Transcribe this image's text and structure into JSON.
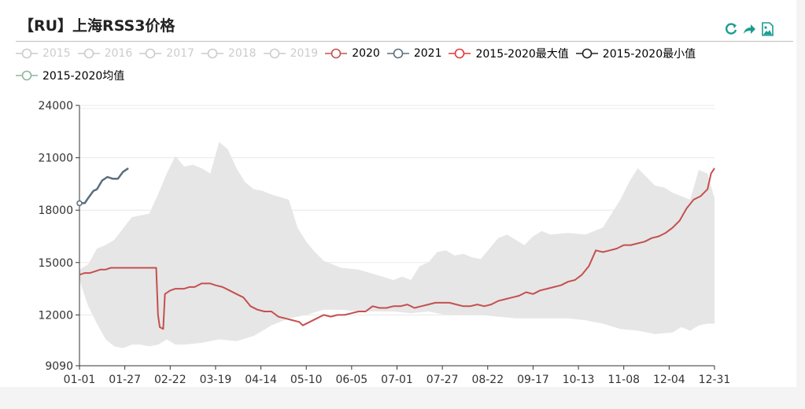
{
  "title": "【RU】上海RSS3价格",
  "toolbox": {
    "icons": [
      "refresh-icon",
      "share-icon",
      "save-image-icon"
    ],
    "color": "#1a9d8f"
  },
  "chart_data": {
    "type": "line",
    "title": "【RU】上海RSS3价格",
    "xlabel": "",
    "ylabel": "",
    "x_ticks": [
      "01-01",
      "01-27",
      "02-22",
      "03-19",
      "04-14",
      "05-10",
      "06-05",
      "07-01",
      "07-27",
      "08-22",
      "09-17",
      "10-13",
      "11-08",
      "12-04",
      "12-31"
    ],
    "y_ticks": [
      9090,
      12000,
      15000,
      18000,
      21000,
      24000
    ],
    "ylim": [
      9090,
      24000
    ],
    "x_domain": [
      0,
      364
    ],
    "grid": true,
    "legend_position": "top",
    "range_band": {
      "name": "2015-2019",
      "color": "#e6e6e6",
      "upper": [
        [
          0,
          14600
        ],
        [
          5,
          14900
        ],
        [
          10,
          15800
        ],
        [
          15,
          16000
        ],
        [
          20,
          16300
        ],
        [
          30,
          17600
        ],
        [
          40,
          17800
        ],
        [
          45,
          18900
        ],
        [
          50,
          20100
        ],
        [
          55,
          21100
        ],
        [
          60,
          20500
        ],
        [
          65,
          20600
        ],
        [
          70,
          20400
        ],
        [
          75,
          20100
        ],
        [
          80,
          21900
        ],
        [
          85,
          21500
        ],
        [
          90,
          20400
        ],
        [
          95,
          19600
        ],
        [
          100,
          19200
        ],
        [
          105,
          19100
        ],
        [
          110,
          18900
        ],
        [
          120,
          18600
        ],
        [
          125,
          17000
        ],
        [
          130,
          16200
        ],
        [
          135,
          15600
        ],
        [
          140,
          15100
        ],
        [
          150,
          14700
        ],
        [
          160,
          14600
        ],
        [
          170,
          14300
        ],
        [
          180,
          14000
        ],
        [
          185,
          14200
        ],
        [
          190,
          14000
        ],
        [
          195,
          14800
        ],
        [
          200,
          15000
        ],
        [
          205,
          15600
        ],
        [
          210,
          15700
        ],
        [
          215,
          15400
        ],
        [
          220,
          15500
        ],
        [
          225,
          15300
        ],
        [
          230,
          15200
        ],
        [
          240,
          16400
        ],
        [
          245,
          16600
        ],
        [
          250,
          16300
        ],
        [
          255,
          16000
        ],
        [
          260,
          16500
        ],
        [
          265,
          16800
        ],
        [
          270,
          16600
        ],
        [
          280,
          16700
        ],
        [
          290,
          16600
        ],
        [
          300,
          17000
        ],
        [
          305,
          17800
        ],
        [
          310,
          18600
        ],
        [
          315,
          19600
        ],
        [
          320,
          20400
        ],
        [
          325,
          19900
        ],
        [
          330,
          19400
        ],
        [
          335,
          19300
        ],
        [
          340,
          19000
        ],
        [
          345,
          18800
        ],
        [
          350,
          18600
        ],
        [
          355,
          20300
        ],
        [
          360,
          20100
        ],
        [
          364,
          18700
        ]
      ],
      "lower": [
        [
          0,
          14000
        ],
        [
          5,
          12500
        ],
        [
          10,
          11500
        ],
        [
          15,
          10600
        ],
        [
          20,
          10200
        ],
        [
          25,
          10100
        ],
        [
          30,
          10300
        ],
        [
          35,
          10300
        ],
        [
          40,
          10200
        ],
        [
          45,
          10300
        ],
        [
          50,
          10600
        ],
        [
          55,
          10300
        ],
        [
          60,
          10300
        ],
        [
          70,
          10400
        ],
        [
          80,
          10600
        ],
        [
          90,
          10500
        ],
        [
          100,
          10800
        ],
        [
          110,
          11400
        ],
        [
          120,
          11800
        ],
        [
          130,
          12000
        ],
        [
          140,
          12300
        ],
        [
          150,
          12300
        ],
        [
          160,
          12200
        ],
        [
          170,
          12200
        ],
        [
          180,
          12200
        ],
        [
          190,
          12100
        ],
        [
          200,
          12200
        ],
        [
          210,
          12000
        ],
        [
          220,
          12000
        ],
        [
          230,
          12000
        ],
        [
          240,
          11900
        ],
        [
          250,
          11800
        ],
        [
          260,
          11800
        ],
        [
          270,
          11800
        ],
        [
          280,
          11800
        ],
        [
          290,
          11700
        ],
        [
          300,
          11500
        ],
        [
          310,
          11200
        ],
        [
          320,
          11100
        ],
        [
          330,
          10900
        ],
        [
          340,
          11000
        ],
        [
          345,
          11300
        ],
        [
          350,
          11100
        ],
        [
          355,
          11400
        ],
        [
          360,
          11500
        ],
        [
          364,
          11500
        ]
      ]
    },
    "series": [
      {
        "name": "2015",
        "legend_only": true,
        "visible": false,
        "color": "#cccccc"
      },
      {
        "name": "2016",
        "legend_only": true,
        "visible": false,
        "color": "#cccccc"
      },
      {
        "name": "2017",
        "legend_only": true,
        "visible": false,
        "color": "#cccccc"
      },
      {
        "name": "2018",
        "legend_only": true,
        "visible": false,
        "color": "#cccccc"
      },
      {
        "name": "2019",
        "legend_only": true,
        "visible": false,
        "color": "#cccccc"
      },
      {
        "name": "2020",
        "color": "#c4504f",
        "style": "solid",
        "width": 2,
        "points": [
          [
            0,
            14300
          ],
          [
            3,
            14400
          ],
          [
            6,
            14400
          ],
          [
            9,
            14500
          ],
          [
            12,
            14600
          ],
          [
            15,
            14600
          ],
          [
            18,
            14700
          ],
          [
            21,
            14700
          ],
          [
            24,
            14700
          ],
          [
            27,
            14700
          ],
          [
            30,
            14700
          ],
          [
            33,
            14700
          ],
          [
            36,
            14700
          ],
          [
            39,
            14700
          ],
          [
            42,
            14700
          ],
          [
            44,
            14700
          ],
          [
            45,
            12000
          ],
          [
            46,
            11300
          ],
          [
            48,
            11200
          ],
          [
            49,
            13200
          ],
          [
            52,
            13400
          ],
          [
            55,
            13500
          ],
          [
            60,
            13500
          ],
          [
            63,
            13600
          ],
          [
            66,
            13600
          ],
          [
            70,
            13800
          ],
          [
            75,
            13800
          ],
          [
            78,
            13700
          ],
          [
            82,
            13600
          ],
          [
            86,
            13400
          ],
          [
            90,
            13200
          ],
          [
            94,
            13000
          ],
          [
            98,
            12500
          ],
          [
            102,
            12300
          ],
          [
            106,
            12200
          ],
          [
            110,
            12200
          ],
          [
            114,
            11900
          ],
          [
            118,
            11800
          ],
          [
            122,
            11700
          ],
          [
            126,
            11600
          ],
          [
            128,
            11400
          ],
          [
            132,
            11600
          ],
          [
            136,
            11800
          ],
          [
            140,
            12000
          ],
          [
            144,
            11900
          ],
          [
            148,
            12000
          ],
          [
            152,
            12000
          ],
          [
            156,
            12100
          ],
          [
            160,
            12200
          ],
          [
            164,
            12200
          ],
          [
            168,
            12500
          ],
          [
            172,
            12400
          ],
          [
            176,
            12400
          ],
          [
            180,
            12500
          ],
          [
            184,
            12500
          ],
          [
            188,
            12600
          ],
          [
            192,
            12400
          ],
          [
            196,
            12500
          ],
          [
            200,
            12600
          ],
          [
            204,
            12700
          ],
          [
            208,
            12700
          ],
          [
            212,
            12700
          ],
          [
            216,
            12600
          ],
          [
            220,
            12500
          ],
          [
            224,
            12500
          ],
          [
            228,
            12600
          ],
          [
            232,
            12500
          ],
          [
            236,
            12600
          ],
          [
            240,
            12800
          ],
          [
            244,
            12900
          ],
          [
            248,
            13000
          ],
          [
            252,
            13100
          ],
          [
            256,
            13300
          ],
          [
            260,
            13200
          ],
          [
            264,
            13400
          ],
          [
            268,
            13500
          ],
          [
            272,
            13600
          ],
          [
            276,
            13700
          ],
          [
            280,
            13900
          ],
          [
            284,
            14000
          ],
          [
            288,
            14300
          ],
          [
            292,
            14800
          ],
          [
            296,
            15700
          ],
          [
            300,
            15600
          ],
          [
            304,
            15700
          ],
          [
            308,
            15800
          ],
          [
            312,
            16000
          ],
          [
            316,
            16000
          ],
          [
            320,
            16100
          ],
          [
            324,
            16200
          ],
          [
            328,
            16400
          ],
          [
            332,
            16500
          ],
          [
            336,
            16700
          ],
          [
            340,
            17000
          ],
          [
            344,
            17400
          ],
          [
            348,
            18100
          ],
          [
            352,
            18600
          ],
          [
            356,
            18800
          ],
          [
            360,
            19200
          ],
          [
            362,
            20100
          ],
          [
            364,
            20400
          ]
        ]
      },
      {
        "name": "2021",
        "color": "#5b6e7d",
        "style": "solid",
        "width": 2.5,
        "points": [
          [
            0,
            18400
          ],
          [
            3,
            18400
          ],
          [
            5,
            18700
          ],
          [
            8,
            19100
          ],
          [
            10,
            19200
          ],
          [
            13,
            19700
          ],
          [
            16,
            19900
          ],
          [
            19,
            19800
          ],
          [
            22,
            19800
          ],
          [
            25,
            20200
          ],
          [
            28,
            20400
          ]
        ]
      },
      {
        "name": "2015-2020最大值",
        "color": "#e03a3a",
        "style": "markers",
        "marker": "circle"
      },
      {
        "name": "2015-2020最小值",
        "color": "#222222",
        "style": "markers",
        "marker": "circle"
      },
      {
        "name": "2015-2020均值",
        "color": "#8fb59a",
        "style": "dotted",
        "marker": "circle"
      }
    ]
  }
}
